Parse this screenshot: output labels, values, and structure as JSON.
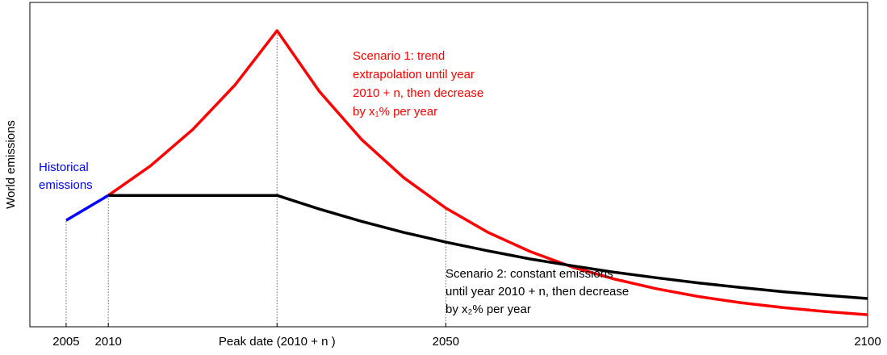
{
  "chart_data": {
    "type": "line",
    "y_label": "World emissions",
    "x": [
      2005,
      2010,
      2015,
      2020,
      2025,
      2030,
      2035,
      2040,
      2045,
      2050,
      2055,
      2060,
      2065,
      2070,
      2075,
      2080,
      2085,
      2090,
      2095,
      2100
    ],
    "xlim": [
      2000.7,
      2100
    ],
    "ylim": [
      0,
      100
    ],
    "xticks": [
      2005,
      2010,
      {
        "value": 2030,
        "label": "Peak date (2010 + n )"
      },
      2050,
      2100
    ],
    "series": [
      {
        "name": "Historical emissions",
        "color": "#0000ff",
        "values": [
          32.8,
          40.5,
          null,
          null,
          null,
          null,
          null,
          null,
          null,
          null,
          null,
          null,
          null,
          null,
          null,
          null,
          null,
          null,
          null,
          null
        ]
      },
      {
        "name": "Scenario 1",
        "color": "#ff0000",
        "values": [
          null,
          40.5,
          49.6,
          60.8,
          74.5,
          91.3,
          72.6,
          57.8,
          46.0,
          36.6,
          29.1,
          23.2,
          18.4,
          14.7,
          11.7,
          9.3,
          7.4,
          5.9,
          4.7,
          3.7
        ]
      },
      {
        "name": "Scenario 2",
        "color": "#000000",
        "values": [
          null,
          40.5,
          40.5,
          40.5,
          40.5,
          40.5,
          36.3,
          32.5,
          29.1,
          26.1,
          23.4,
          20.9,
          18.8,
          16.8,
          15.1,
          13.5,
          12.1,
          10.8,
          9.7,
          8.7
        ]
      }
    ],
    "annotations": [
      {
        "color": "#0000ff",
        "lines": [
          "Historical",
          "emissions"
        ]
      },
      {
        "color": "#ff0000",
        "lines": [
          "Scenario 1: trend",
          "extrapolation until year",
          "2010 + n, then decrease",
          "by x₁% per year"
        ]
      },
      {
        "color": "#000000",
        "lines": [
          "Scenario 2: constant emissions",
          "until year 2010 + n, then decrease",
          "by x₂% per year"
        ]
      }
    ]
  }
}
